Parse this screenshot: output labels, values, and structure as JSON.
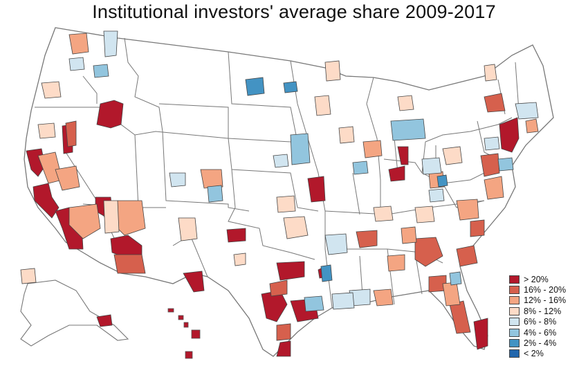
{
  "title": "Institutional investors' average share 2009-2017",
  "legend": [
    {
      "label": "> 20%",
      "color": "#b2182b"
    },
    {
      "label": "16% - 20%",
      "color": "#d6604d"
    },
    {
      "label": "12% - 16%",
      "color": "#f4a582"
    },
    {
      "label": "8% - 12%",
      "color": "#fddbc7"
    },
    {
      "label": "6% - 8%",
      "color": "#d1e5f0"
    },
    {
      "label": "4% - 6%",
      "color": "#92c5de"
    },
    {
      "label": "2% - 4%",
      "color": "#4393c3"
    },
    {
      "label": "< 2%",
      "color": "#2166ac"
    }
  ],
  "areas": [
    {
      "region": "Oregon east",
      "bin": "> 20%"
    },
    {
      "region": "Northern California coast",
      "bin": "> 20%"
    },
    {
      "region": "Southern California",
      "bin": "> 20%"
    },
    {
      "region": "Las Vegas",
      "bin": "> 20%"
    },
    {
      "region": "Phoenix",
      "bin": "> 20%"
    },
    {
      "region": "Kansas City",
      "bin": "> 20%"
    },
    {
      "region": "Dallas",
      "bin": "> 20%"
    },
    {
      "region": "Houston",
      "bin": "> 20%"
    },
    {
      "region": "Austin",
      "bin": "> 20%"
    },
    {
      "region": "San Antonio",
      "bin": "> 20%"
    },
    {
      "region": "Lubbock",
      "bin": "> 20%"
    },
    {
      "region": "El Paso",
      "bin": "> 20%"
    },
    {
      "region": "Indianapolis",
      "bin": "> 20%"
    },
    {
      "region": "South Bend",
      "bin": "> 20%"
    },
    {
      "region": "New York",
      "bin": "> 20%"
    },
    {
      "region": "Miami",
      "bin": "> 20%"
    },
    {
      "region": "Hawaii",
      "bin": "> 20%"
    },
    {
      "region": "Anchorage",
      "bin": "> 20%"
    },
    {
      "region": "Mid-Atlantic",
      "bin": "16% - 20%"
    },
    {
      "region": "Tucson",
      "bin": "16% - 20%"
    },
    {
      "region": "Atlanta",
      "bin": "16% - 20%"
    },
    {
      "region": "Memphis",
      "bin": "16% - 20%"
    },
    {
      "region": "Boise",
      "bin": "16% - 20%"
    },
    {
      "region": "Florida west coast",
      "bin": "16% - 20%"
    },
    {
      "region": "Carolinas coast",
      "bin": "16% - 20%"
    },
    {
      "region": "Albuquerque",
      "bin": "12% - 16%"
    },
    {
      "region": "Denver",
      "bin": "12% - 16%"
    },
    {
      "region": "Southern Nevada / Mojave",
      "bin": "12% - 16%"
    },
    {
      "region": "Salt Lake area",
      "bin": "8% - 12%"
    },
    {
      "region": "Oklahoma",
      "bin": "8% - 12%"
    },
    {
      "region": "Upper Midwest",
      "bin": "6% - 8%"
    },
    {
      "region": "Iowa",
      "bin": "4% - 6%"
    },
    {
      "region": "Michigan",
      "bin": "4% - 6%"
    },
    {
      "region": "Louisiana",
      "bin": "2% - 4%"
    },
    {
      "region": "North Dakota",
      "bin": "2% - 4%"
    },
    {
      "region": "Cheyenne",
      "bin": "4% - 6%"
    }
  ]
}
